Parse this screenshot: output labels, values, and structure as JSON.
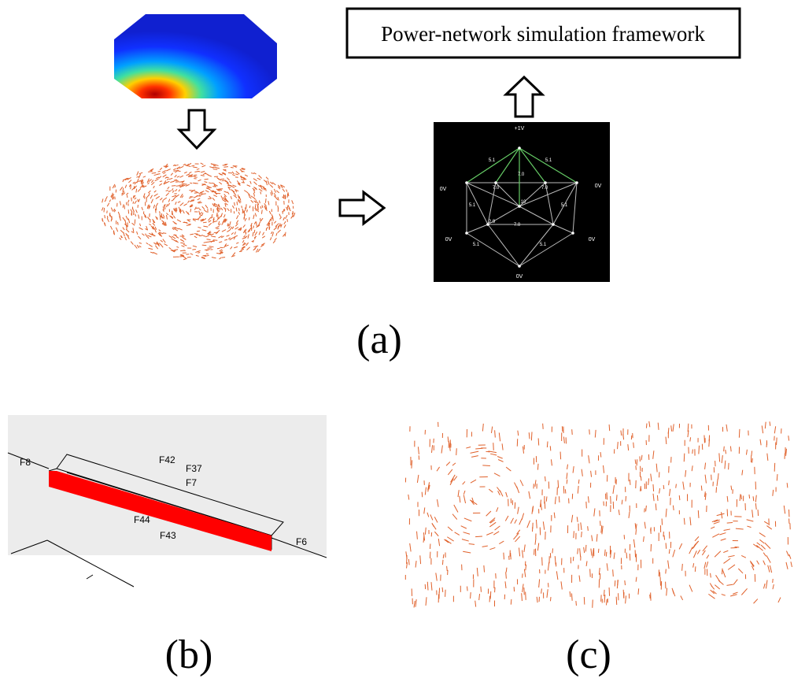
{
  "panel_a": {
    "label": "(a)",
    "framework_box": "Power-network simulation framework",
    "circuit": {
      "node_labels": [
        "+1V",
        "0V",
        "0V",
        "0V",
        "0V",
        "0V"
      ],
      "resistor_labels": [
        "5.1",
        "5.1",
        "7.0",
        "7.0",
        "7.0",
        "10",
        "5.1",
        "5.1",
        "2.9",
        "7.0",
        "5.1",
        "5.1"
      ]
    }
  },
  "panel_b": {
    "label": "(b)",
    "face_labels": [
      "F8",
      "F42",
      "F37",
      "F7",
      "F44",
      "F43",
      "F6"
    ]
  },
  "panel_c": {
    "label": "(c)"
  }
}
